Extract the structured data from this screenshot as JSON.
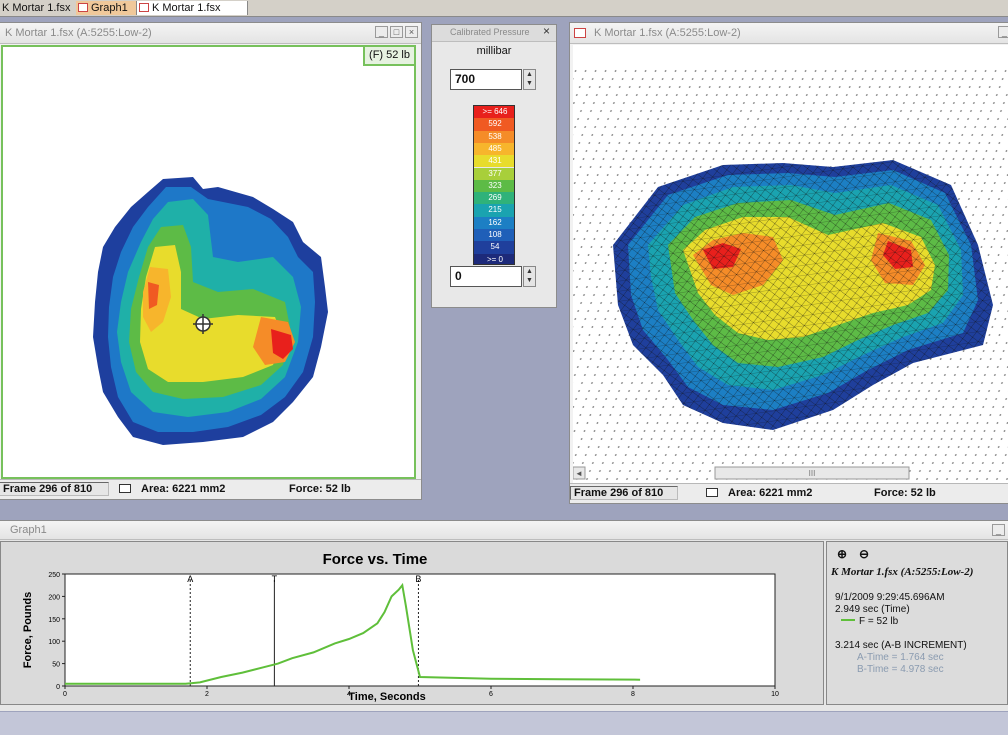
{
  "tabs": [
    {
      "label": "K Mortar 1.fsx",
      "style": "plain"
    },
    {
      "label": "Graph1",
      "style": "orange"
    },
    {
      "label": "K Mortar 1.fsx",
      "style": "active"
    }
  ],
  "map2d": {
    "title": "K Mortar 1.fsx (A:5255:Low-2)",
    "force_badge": "(F) 52 lb",
    "status": {
      "frame": "Frame 296 of 810",
      "area": "Area: 6221 mm2",
      "force": "Force: 52 lb"
    }
  },
  "pressure": {
    "title": "Calibrated Pressure",
    "unit": "millibar",
    "max_value": "700",
    "min_value": "0",
    "legend": [
      {
        "label": ">= 646",
        "color": "#e8201c"
      },
      {
        "label": "592",
        "color": "#f05a22"
      },
      {
        "label": "538",
        "color": "#f58c28"
      },
      {
        "label": "485",
        "color": "#f7b52c"
      },
      {
        "label": "431",
        "color": "#e8dc2c"
      },
      {
        "label": "377",
        "color": "#a8cf3a"
      },
      {
        "label": "323",
        "color": "#5dbb46"
      },
      {
        "label": "269",
        "color": "#2fb27a"
      },
      {
        "label": "215",
        "color": "#1aa3b0"
      },
      {
        "label": "162",
        "color": "#1c7fc4"
      },
      {
        "label": "108",
        "color": "#1f5fb8"
      },
      {
        "label": "54",
        "color": "#1f3f9c"
      },
      {
        "label": ">= 0",
        "color": "#1d2a7a"
      }
    ]
  },
  "map3d": {
    "title": "K Mortar 1.fsx (A:5255:Low-2)",
    "status": {
      "frame": "Frame 296 of 810",
      "area": "Area: 6221 mm2",
      "force": "Force: 52 lb"
    }
  },
  "graph": {
    "window_title": "Graph1",
    "info": {
      "file": "K Mortar 1.fsx (A:5255:Low-2)",
      "datetime": "9/1/2009 9:29:45.696AM",
      "time": "2.949 sec (Time)",
      "force": "F = 52 lb",
      "increment": "3.214 sec (A-B INCREMENT)",
      "a_time": "A-Time = 1.764 sec",
      "b_time": "B-Time = 4.978 sec"
    }
  },
  "chart_data": {
    "type": "line",
    "title": "Force vs. Time",
    "xlabel": "Time, Seconds",
    "ylabel": "Force, Pounds",
    "xlim": [
      0,
      10
    ],
    "ylim": [
      0,
      250
    ],
    "xticks": [
      "0",
      "2",
      "4",
      "6",
      "8",
      "10"
    ],
    "yticks": [
      "0",
      "50",
      "100",
      "150",
      "200",
      "250"
    ],
    "grid": false,
    "series": [
      {
        "color": "#5fbf3a",
        "x": [
          0,
          1.7,
          1.9,
          2.2,
          2.5,
          2.8,
          3.0,
          3.2,
          3.5,
          3.8,
          4.0,
          4.2,
          4.4,
          4.5,
          4.6,
          4.7,
          4.75,
          4.8,
          4.9,
          5.0,
          5.5,
          6.0,
          7.0,
          8.1
        ],
        "y": [
          5,
          5,
          8,
          20,
          30,
          42,
          50,
          62,
          75,
          95,
          105,
          118,
          140,
          165,
          200,
          215,
          225,
          180,
          80,
          20,
          18,
          16,
          15,
          14
        ]
      }
    ],
    "markers": [
      {
        "label": "A",
        "x": 1.764,
        "style": "dotted"
      },
      {
        "label": "T",
        "x": 2.949,
        "style": "solid"
      },
      {
        "label": "B",
        "x": 4.978,
        "style": "dotted"
      }
    ]
  }
}
